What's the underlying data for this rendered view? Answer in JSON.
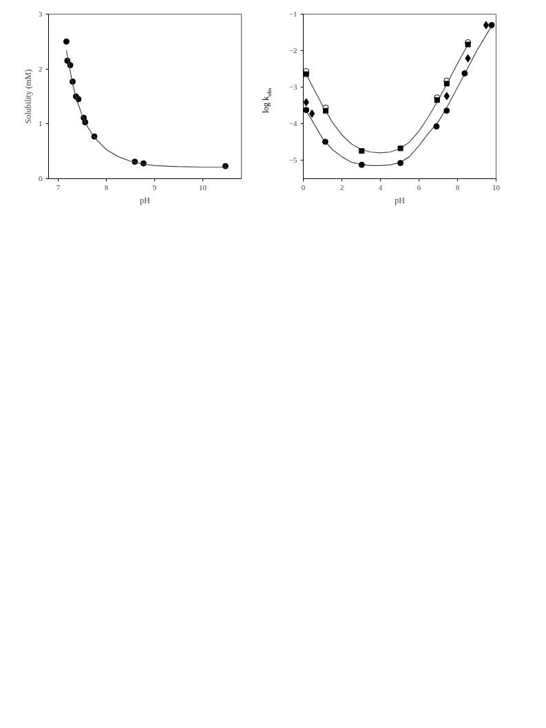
{
  "chart_data": [
    {
      "type": "scatter",
      "xlabel": "pH",
      "ylabel": "Solubility (mM)",
      "xlim": [
        6.8,
        10.8
      ],
      "ylim": [
        0,
        3
      ],
      "xticks": [
        7,
        8,
        9,
        10
      ],
      "yticks": [
        0,
        1,
        2,
        3
      ],
      "grid": false,
      "series": [
        {
          "type": "scatter",
          "marker": "circle",
          "color": "#000000",
          "x": [
            7.17,
            7.19,
            7.25,
            7.3,
            7.37,
            7.42,
            7.53,
            7.56,
            7.75,
            8.59,
            8.77,
            10.47
          ],
          "values": [
            2.5,
            2.15,
            2.07,
            1.77,
            1.5,
            1.45,
            1.11,
            1.03,
            0.77,
            0.31,
            0.28,
            0.23
          ]
        },
        {
          "type": "line",
          "color": "#444444",
          "x": [
            7.17,
            7.3,
            7.4,
            7.5,
            7.6,
            7.75,
            8.0,
            8.25,
            8.5,
            8.75,
            9.0,
            9.5,
            10.0,
            10.5
          ],
          "values": [
            2.34,
            1.72,
            1.4,
            1.15,
            0.96,
            0.75,
            0.53,
            0.4,
            0.32,
            0.27,
            0.24,
            0.22,
            0.21,
            0.21
          ]
        }
      ]
    },
    {
      "type": "scatter",
      "xlabel": "pH",
      "ylabel": "log k$_{obs}$",
      "xlim": [
        0,
        10
      ],
      "ylim": [
        -5.5,
        -1
      ],
      "xticks": [
        0,
        2,
        4,
        6,
        8,
        10
      ],
      "yticks": [
        -5,
        -4,
        -3,
        -2,
        -1
      ],
      "grid": false,
      "series": [
        {
          "type": "line",
          "color": "#444444",
          "x": [
            0.15,
            0.5,
            1.0,
            1.5,
            2.0,
            2.5,
            3.0,
            3.5,
            4.0,
            4.5,
            5.0,
            5.5,
            6.0,
            6.5,
            7.0,
            7.5,
            8.0,
            8.54
          ],
          "values": [
            -2.64,
            -3.0,
            -3.5,
            -3.95,
            -4.3,
            -4.55,
            -4.7,
            -4.77,
            -4.79,
            -4.77,
            -4.68,
            -4.5,
            -4.2,
            -3.8,
            -3.35,
            -2.85,
            -2.35,
            -1.83
          ]
        },
        {
          "type": "line",
          "color": "#444444",
          "x": [
            0.1,
            0.5,
            1.0,
            1.5,
            2.0,
            2.5,
            3.0,
            3.5,
            4.0,
            4.5,
            5.0,
            5.5,
            6.0,
            6.5,
            7.0,
            7.5,
            8.0,
            8.5,
            9.0,
            9.8
          ],
          "values": [
            -3.6,
            -3.95,
            -4.4,
            -4.7,
            -4.9,
            -5.05,
            -5.11,
            -5.14,
            -5.14,
            -5.12,
            -5.06,
            -4.9,
            -4.6,
            -4.25,
            -3.95,
            -3.5,
            -3.0,
            -2.5,
            -2.0,
            -1.3
          ]
        },
        {
          "type": "scatter",
          "marker": "circle",
          "color": "#ffffff",
          "x": [
            0.15,
            1.16,
            6.94,
            7.44,
            8.54
          ],
          "values": [
            -2.56,
            -3.56,
            -3.28,
            -2.82,
            -1.77
          ]
        },
        {
          "type": "scatter",
          "marker": "square",
          "color": "#000000",
          "x": [
            0.15,
            1.16,
            3.03,
            5.04,
            6.94,
            7.44,
            8.54
          ],
          "values": [
            -2.64,
            -3.64,
            -4.74,
            -4.67,
            -3.35,
            -2.9,
            -1.83
          ]
        },
        {
          "type": "scatter",
          "marker": "diamond",
          "color": "#000000",
          "x": [
            0.15,
            0.45,
            7.44,
            8.54,
            9.48
          ],
          "values": [
            -3.41,
            -3.72,
            -3.24,
            -2.21,
            -1.3
          ]
        },
        {
          "type": "scatter",
          "marker": "circle",
          "color": "#000000",
          "x": [
            0.15,
            1.14,
            3.03,
            5.04,
            6.91,
            7.44,
            8.37,
            9.77
          ],
          "values": [
            -3.62,
            -4.49,
            -5.12,
            -5.07,
            -4.07,
            -3.64,
            -2.62,
            -1.3
          ]
        }
      ]
    }
  ]
}
